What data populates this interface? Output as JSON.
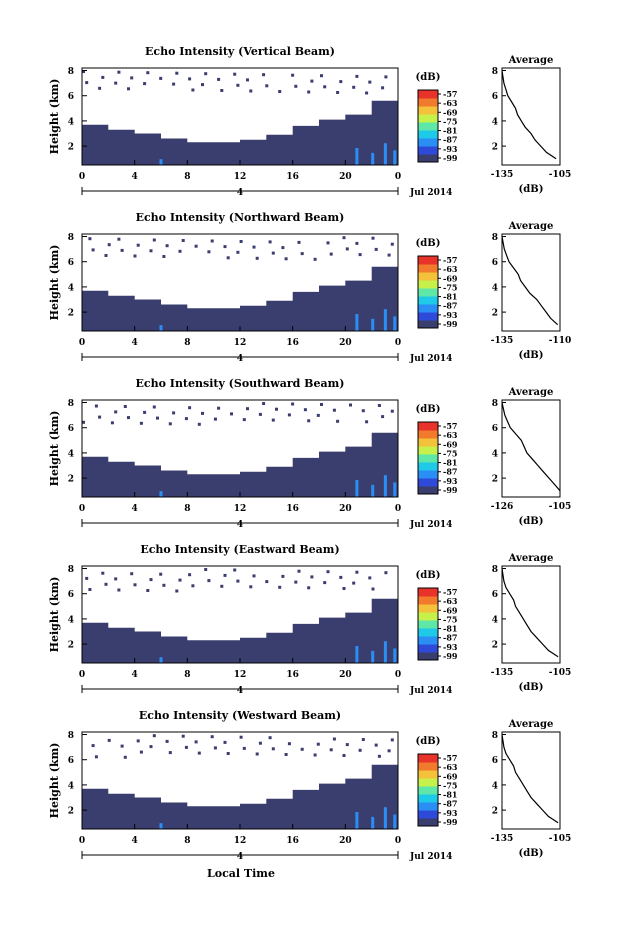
{
  "figure": {
    "xlabel": "Local Time",
    "colorbar_unit": "(dB)",
    "colorbar_ticks": [
      "-57",
      "-63",
      "-69",
      "-75",
      "-81",
      "-87",
      "-93",
      "-99"
    ],
    "date_label": "Jul 2014",
    "day_label": "4",
    "avg_title": "Average",
    "avg_xlabel": "(dB)",
    "colors": {
      "profile": "#3a3e6e",
      "colorbar": [
        "#3a3e6e",
        "#2f49d8",
        "#2b8ef5",
        "#1fc9e8",
        "#5fe7a8",
        "#c6f04a",
        "#f4c23a",
        "#f27a2c",
        "#e8332a"
      ]
    }
  },
  "chart_data": [
    {
      "type": "heatmap",
      "title": "Echo Intensity (Vertical Beam)",
      "ylabel": "Height (km)",
      "x_ticks": [
        "0",
        "4",
        "8",
        "12",
        "16",
        "20",
        "0"
      ],
      "y_ticks": [
        "2",
        "4",
        "6",
        "8"
      ],
      "xlim": [
        0,
        24
      ],
      "ylim": [
        0.5,
        8.2
      ],
      "top_km": [
        3.7,
        3.3,
        3.0,
        2.6,
        2.3,
        2.3,
        2.5,
        2.9,
        3.6,
        4.1,
        4.5,
        5.6
      ],
      "avg_x_ticks": [
        "-135",
        "-105"
      ],
      "avg_xlim": [
        -135,
        -105
      ],
      "avg_profile": {
        "height_km": [
          8.0,
          7.0,
          6.5,
          6.0,
          5.5,
          5.0,
          4.5,
          4.0,
          3.5,
          3.0,
          2.5,
          2.0,
          1.5,
          1.0
        ],
        "dB": [
          -135,
          -134,
          -133,
          -132,
          -130,
          -128,
          -127,
          -125,
          -123,
          -120,
          -118,
          -115,
          -112,
          -107
        ]
      }
    },
    {
      "type": "heatmap",
      "title": "Echo Intensity (Northward Beam)",
      "ylabel": "Height (km)",
      "x_ticks": [
        "0",
        "4",
        "8",
        "12",
        "16",
        "20",
        "0"
      ],
      "y_ticks": [
        "2",
        "4",
        "6",
        "8"
      ],
      "xlim": [
        0,
        24
      ],
      "ylim": [
        0.5,
        8.2
      ],
      "top_km": [
        3.7,
        3.3,
        3.0,
        2.6,
        2.3,
        2.3,
        2.5,
        2.9,
        3.6,
        4.1,
        4.5,
        5.6
      ],
      "avg_x_ticks": [
        "-135",
        "-110"
      ],
      "avg_xlim": [
        -135,
        -110
      ],
      "avg_profile": {
        "height_km": [
          8.0,
          7.0,
          6.5,
          6.0,
          5.5,
          5.0,
          4.5,
          4.0,
          3.5,
          3.0,
          2.5,
          2.0,
          1.5,
          1.0
        ],
        "dB": [
          -135,
          -134,
          -133,
          -132,
          -130,
          -128,
          -127,
          -125,
          -123,
          -120,
          -118,
          -116,
          -114,
          -111
        ]
      }
    },
    {
      "type": "heatmap",
      "title": "Echo Intensity (Southward Beam)",
      "ylabel": "Height (km)",
      "x_ticks": [
        "0",
        "4",
        "8",
        "12",
        "16",
        "20",
        "0"
      ],
      "y_ticks": [
        "2",
        "4",
        "6",
        "8"
      ],
      "xlim": [
        0,
        24
      ],
      "ylim": [
        0.5,
        8.2
      ],
      "top_km": [
        3.7,
        3.3,
        3.0,
        2.6,
        2.3,
        2.3,
        2.5,
        2.9,
        3.6,
        4.1,
        4.5,
        5.6
      ],
      "avg_x_ticks": [
        "-126",
        "-105"
      ],
      "avg_xlim": [
        -126,
        -105
      ],
      "avg_profile": {
        "height_km": [
          8.0,
          7.0,
          6.5,
          6.0,
          5.5,
          5.0,
          4.5,
          4.0,
          3.5,
          3.0,
          2.5,
          2.0,
          1.5,
          1.0
        ],
        "dB": [
          -126,
          -125,
          -124,
          -123,
          -121,
          -119,
          -118,
          -117,
          -115,
          -113,
          -111,
          -109,
          -107,
          -105
        ]
      }
    },
    {
      "type": "heatmap",
      "title": "Echo Intensity (Eastward Beam)",
      "ylabel": "Height (km)",
      "x_ticks": [
        "0",
        "4",
        "8",
        "12",
        "16",
        "20",
        "0"
      ],
      "y_ticks": [
        "2",
        "4",
        "6",
        "8"
      ],
      "xlim": [
        0,
        24
      ],
      "ylim": [
        0.5,
        8.2
      ],
      "top_km": [
        3.7,
        3.3,
        3.0,
        2.6,
        2.3,
        2.3,
        2.5,
        2.9,
        3.6,
        4.1,
        4.5,
        5.6
      ],
      "avg_x_ticks": [
        "-135",
        "-105"
      ],
      "avg_xlim": [
        -135,
        -105
      ],
      "avg_profile": {
        "height_km": [
          8.0,
          7.0,
          6.5,
          6.0,
          5.5,
          5.0,
          4.5,
          4.0,
          3.5,
          3.0,
          2.5,
          2.0,
          1.5,
          1.0
        ],
        "dB": [
          -135,
          -134,
          -133,
          -131,
          -129,
          -128,
          -126,
          -124,
          -122,
          -120,
          -117,
          -114,
          -111,
          -106
        ]
      }
    },
    {
      "type": "heatmap",
      "title": "Echo Intensity (Westward Beam)",
      "ylabel": "Height (km)",
      "x_ticks": [
        "0",
        "4",
        "8",
        "12",
        "16",
        "20",
        "0"
      ],
      "y_ticks": [
        "2",
        "4",
        "6",
        "8"
      ],
      "xlim": [
        0,
        24
      ],
      "ylim": [
        0.5,
        8.2
      ],
      "top_km": [
        3.7,
        3.3,
        3.0,
        2.6,
        2.3,
        2.3,
        2.5,
        2.9,
        3.6,
        4.1,
        4.5,
        5.6
      ],
      "avg_x_ticks": [
        "-135",
        "-105"
      ],
      "avg_xlim": [
        -135,
        -105
      ],
      "avg_profile": {
        "height_km": [
          8.0,
          7.0,
          6.5,
          6.0,
          5.5,
          5.0,
          4.5,
          4.0,
          3.5,
          3.0,
          2.5,
          2.0,
          1.5,
          1.0
        ],
        "dB": [
          -135,
          -134,
          -133,
          -131,
          -129,
          -128,
          -126,
          -124,
          -122,
          -120,
          -117,
          -114,
          -111,
          -106
        ]
      }
    }
  ]
}
